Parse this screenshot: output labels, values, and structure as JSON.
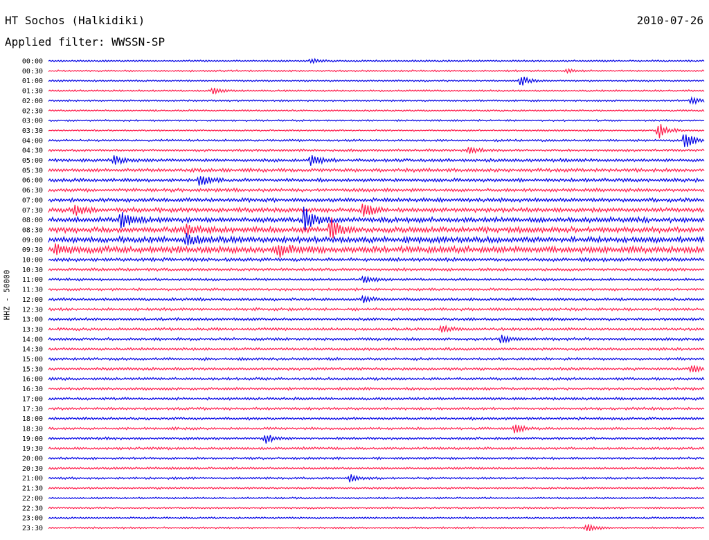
{
  "header": {
    "station": "HT Sochos (Halkidiki)",
    "date": "2010-07-26",
    "filter": "Applied filter: WWSSN-SP"
  },
  "chart_data": {
    "type": "line",
    "title": "HT Sochos (Halkidiki)",
    "subtitle": "Applied filter: WWSSN-SP",
    "date": "2010-07-26",
    "ylabel": "HHZ - 50000",
    "xlabel": "",
    "grid": false,
    "colors": [
      "#0000e6",
      "#ff1a4a"
    ],
    "row_labels": [
      "00:00",
      "00:30",
      "01:00",
      "01:30",
      "02:00",
      "02:30",
      "03:00",
      "03:30",
      "04:00",
      "04:30",
      "05:00",
      "05:30",
      "06:00",
      "06:30",
      "07:00",
      "07:30",
      "08:00",
      "08:30",
      "09:00",
      "09:30",
      "10:00",
      "10:30",
      "11:00",
      "11:30",
      "12:00",
      "12:30",
      "13:00",
      "13:30",
      "14:00",
      "14:30",
      "15:00",
      "15:30",
      "16:00",
      "16:30",
      "17:00",
      "17:30",
      "18:00",
      "18:30",
      "19:00",
      "19:30",
      "20:00",
      "20:30",
      "21:00",
      "21:30",
      "22:00",
      "22:30",
      "23:00",
      "23:30"
    ],
    "noise_level": [
      1,
      1,
      1,
      1,
      1,
      1,
      1,
      1,
      1.2,
      1.4,
      1.8,
      2,
      2,
      2,
      2.2,
      2.6,
      3,
      3.2,
      3.4,
      3.8,
      2,
      1.6,
      1.4,
      1.4,
      1.6,
      1.6,
      1.6,
      1.6,
      1.6,
      1.5,
      1.5,
      1.5,
      1.5,
      1.5,
      1.5,
      1.5,
      1.5,
      1.4,
      1.4,
      1.4,
      1.3,
      1.2,
      1.2,
      1.1,
      1,
      1,
      1,
      1
    ],
    "events": [
      {
        "row": 0,
        "t": 0.4,
        "amp": 4
      },
      {
        "row": 1,
        "t": 0.79,
        "amp": 3
      },
      {
        "row": 2,
        "t": 0.72,
        "amp": 8
      },
      {
        "row": 3,
        "t": 0.25,
        "amp": 6
      },
      {
        "row": 4,
        "t": 0.98,
        "amp": 6
      },
      {
        "row": 7,
        "t": 0.93,
        "amp": 12
      },
      {
        "row": 8,
        "t": 0.97,
        "amp": 14
      },
      {
        "row": 9,
        "t": 0.64,
        "amp": 6
      },
      {
        "row": 10,
        "t": 0.4,
        "amp": 10
      },
      {
        "row": 10,
        "t": 0.1,
        "amp": 6
      },
      {
        "row": 12,
        "t": 0.23,
        "amp": 10
      },
      {
        "row": 15,
        "t": 0.04,
        "amp": 8
      },
      {
        "row": 15,
        "t": 0.48,
        "amp": 12
      },
      {
        "row": 16,
        "t": 0.11,
        "amp": 14
      },
      {
        "row": 16,
        "t": 0.39,
        "amp": 20
      },
      {
        "row": 17,
        "t": 0.43,
        "amp": 18
      },
      {
        "row": 17,
        "t": 0.21,
        "amp": 10
      },
      {
        "row": 18,
        "t": 0.21,
        "amp": 10
      },
      {
        "row": 19,
        "t": 0.01,
        "amp": 10
      },
      {
        "row": 19,
        "t": 0.35,
        "amp": 10
      },
      {
        "row": 22,
        "t": 0.48,
        "amp": 6
      },
      {
        "row": 24,
        "t": 0.48,
        "amp": 5
      },
      {
        "row": 27,
        "t": 0.6,
        "amp": 5
      },
      {
        "row": 28,
        "t": 0.69,
        "amp": 6
      },
      {
        "row": 31,
        "t": 0.98,
        "amp": 6
      },
      {
        "row": 37,
        "t": 0.71,
        "amp": 6
      },
      {
        "row": 38,
        "t": 0.33,
        "amp": 7
      },
      {
        "row": 42,
        "t": 0.46,
        "amp": 5
      },
      {
        "row": 47,
        "t": 0.82,
        "amp": 6
      }
    ]
  }
}
